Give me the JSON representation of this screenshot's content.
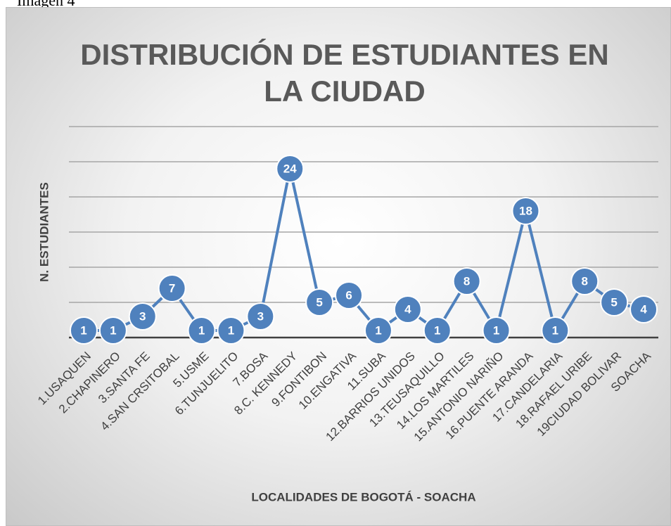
{
  "caption": "Imagen 4",
  "chart_data": {
    "type": "line",
    "title": "DISTRIBUCIÓN DE ESTUDIANTES EN LA CIUDAD",
    "x_label": "LOCALIDADES DE BOGOTÁ - SOACHA",
    "y_label": "N. ESTUDIANTES",
    "categories": [
      "1.USAQUEN",
      "2.CHAPINERO",
      "3.SANTA FE",
      "4.SAN CRSITOBAL",
      "5.USME",
      "6.TUNJUELITO",
      "7.BOSA",
      "8.C. KENNEDY",
      "9.FONTIBON",
      "10.ENGATIVA",
      "11.SUBA",
      "12.BARRIOS UNIDOS",
      "13.TEUSAQUILLO",
      "14.LOS MARTILES",
      "15.ANTONIO NARIÑO",
      "16.PUENTE ARANDA",
      "17.CANDELARIA",
      "18.RAFAEL URIBE",
      "19CIUDAD BOLIVAR",
      "SOACHA"
    ],
    "series": [
      {
        "color": "#4f81bd",
        "values": [
          1,
          1,
          3,
          7,
          1,
          1,
          3,
          24,
          5,
          6,
          1,
          4,
          1,
          8,
          1,
          18,
          1,
          8,
          5,
          4
        ]
      }
    ],
    "ylim": [
      0,
      30
    ],
    "yticks": [
      0,
      5,
      10,
      15,
      20,
      25,
      30
    ],
    "grid": true
  }
}
